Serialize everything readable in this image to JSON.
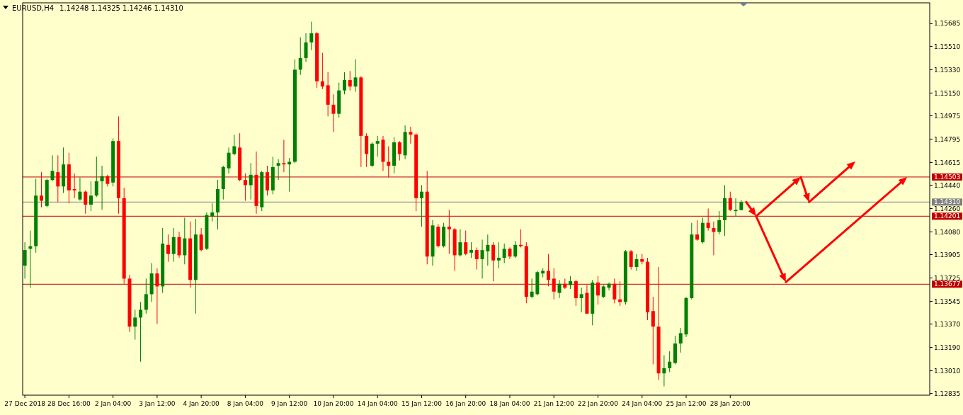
{
  "chart_data": {
    "type": "candlestick",
    "title": "EURUSD,H4",
    "subtitle": "1.14248 1.14325 1.14246 1.14310",
    "categories": [
      "27 Dec 2018",
      null,
      null,
      null,
      null,
      null,
      null,
      null,
      "28 Dec 16:00",
      null,
      null,
      null,
      null,
      null,
      null,
      null,
      "2 Jan 04:00",
      null,
      null,
      null,
      null,
      null,
      null,
      null,
      "3 Jan 12:00",
      null,
      null,
      null,
      null,
      null,
      null,
      null,
      "4 Jan 20:00",
      null,
      null,
      null,
      null,
      null,
      null,
      null,
      "8 Jan 04:00",
      null,
      null,
      null,
      null,
      null,
      null,
      null,
      "9 Jan 12:00",
      null,
      null,
      null,
      null,
      null,
      null,
      null,
      "10 Jan 20:00",
      null,
      null,
      null,
      null,
      null,
      null,
      null,
      "14 Jan 04:00",
      null,
      null,
      null,
      null,
      null,
      null,
      null,
      "15 Jan 12:00",
      null,
      null,
      null,
      null,
      null,
      null,
      null,
      "16 Jan 20:00",
      null,
      null,
      null,
      null,
      null,
      null,
      null,
      "18 Jan 04:00",
      null,
      null,
      null,
      null,
      null,
      null,
      null,
      "21 Jan 12:00",
      null,
      null,
      null,
      null,
      null,
      null,
      null,
      "22 Jan 20:00",
      null,
      null,
      null,
      null,
      null,
      null,
      null,
      "24 Jan 04:00",
      null,
      null,
      null,
      null,
      null,
      null,
      null,
      "25 Jan 12:00",
      null,
      null,
      null,
      null,
      null,
      null,
      null,
      "28 Jan 20:00",
      null,
      null,
      null,
      null,
      null,
      null,
      null,
      null,
      null,
      null,
      null,
      null,
      null,
      null,
      null,
      null,
      null,
      null,
      null,
      null,
      null,
      null,
      null,
      null,
      null,
      null,
      null,
      null,
      null,
      null,
      null,
      null,
      null,
      null,
      null,
      null
    ],
    "ohlc": [
      [
        1.1382,
        1.14,
        1.1372,
        1.1394
      ],
      [
        1.1395,
        1.1409,
        1.1365,
        1.1397
      ],
      [
        1.1397,
        1.1449,
        1.1392,
        1.1436
      ],
      [
        1.1436,
        1.1454,
        1.1427,
        1.1432
      ],
      [
        1.1428,
        1.1449,
        1.1427,
        1.1448
      ],
      [
        1.1448,
        1.1467,
        1.1447,
        1.1455
      ],
      [
        1.1454,
        1.1467,
        1.1431,
        1.1443
      ],
      [
        1.1443,
        1.1473,
        1.1438,
        1.146
      ],
      [
        1.146,
        1.1469,
        1.143,
        1.144
      ],
      [
        1.1441,
        1.1453,
        1.1434,
        1.144
      ],
      [
        1.1433,
        1.145,
        1.1432,
        1.1439
      ],
      [
        1.1439,
        1.144,
        1.1422,
        1.1429
      ],
      [
        1.1429,
        1.1447,
        1.1424,
        1.1436
      ],
      [
        1.1436,
        1.1466,
        1.1435,
        1.1447
      ],
      [
        1.1447,
        1.1459,
        1.1425,
        1.1451
      ],
      [
        1.1451,
        1.1452,
        1.1443,
        1.1445
      ],
      [
        1.1446,
        1.148,
        1.1443,
        1.1478
      ],
      [
        1.1478,
        1.1497,
        1.1422,
        1.1434
      ],
      [
        1.1434,
        1.1442,
        1.1368,
        1.1372
      ],
      [
        1.1372,
        1.1375,
        1.1331,
        1.1335
      ],
      [
        1.1335,
        1.1348,
        1.1325,
        1.1342
      ],
      [
        1.1342,
        1.1354,
        1.1308,
        1.1348
      ],
      [
        1.1348,
        1.1372,
        1.1345,
        1.136
      ],
      [
        1.136,
        1.1384,
        1.1354,
        1.1376
      ],
      [
        1.1376,
        1.138,
        1.1337,
        1.1366
      ],
      [
        1.1366,
        1.1411,
        1.1361,
        1.1399
      ],
      [
        1.1398,
        1.1406,
        1.1385,
        1.1391
      ],
      [
        1.1391,
        1.1411,
        1.1385,
        1.1404
      ],
      [
        1.1404,
        1.1408,
        1.1388,
        1.139
      ],
      [
        1.139,
        1.1419,
        1.1383,
        1.1403
      ],
      [
        1.1403,
        1.1416,
        1.1365,
        1.1371
      ],
      [
        1.1371,
        1.1418,
        1.1345,
        1.1406
      ],
      [
        1.1406,
        1.1411,
        1.1393,
        1.1394
      ],
      [
        1.1395,
        1.1423,
        1.1394,
        1.1421
      ],
      [
        1.142,
        1.143,
        1.1416,
        1.1423
      ],
      [
        1.1423,
        1.1448,
        1.141,
        1.1441
      ],
      [
        1.1441,
        1.1459,
        1.1433,
        1.1458
      ],
      [
        1.1457,
        1.1473,
        1.1453,
        1.1469
      ],
      [
        1.1468,
        1.1483,
        1.1467,
        1.1474
      ],
      [
        1.1473,
        1.1484,
        1.1447,
        1.1448
      ],
      [
        1.1448,
        1.1453,
        1.1432,
        1.1444
      ],
      [
        1.1444,
        1.1461,
        1.1433,
        1.1452
      ],
      [
        1.1452,
        1.147,
        1.1422,
        1.1428
      ],
      [
        1.1427,
        1.1455,
        1.1424,
        1.1454
      ],
      [
        1.1454,
        1.1459,
        1.1436,
        1.144
      ],
      [
        1.144,
        1.1466,
        1.1437,
        1.1458
      ],
      [
        1.1459,
        1.1464,
        1.1448,
        1.1461
      ],
      [
        1.1461,
        1.1479,
        1.1454,
        1.146
      ],
      [
        1.146,
        1.1465,
        1.1439,
        1.1462
      ],
      [
        1.1462,
        1.1541,
        1.1461,
        1.1533
      ],
      [
        1.1533,
        1.1558,
        1.1529,
        1.1542
      ],
      [
        1.1542,
        1.1561,
        1.1539,
        1.1554
      ],
      [
        1.1554,
        1.157,
        1.1548,
        1.1561
      ],
      [
        1.1561,
        1.1562,
        1.1519,
        1.1524
      ],
      [
        1.1524,
        1.1546,
        1.1518,
        1.152
      ],
      [
        1.1521,
        1.1531,
        1.1497,
        1.1506
      ],
      [
        1.1506,
        1.1514,
        1.1485,
        1.1499
      ],
      [
        1.1499,
        1.1523,
        1.1496,
        1.1517
      ],
      [
        1.1517,
        1.1531,
        1.1514,
        1.1525
      ],
      [
        1.1525,
        1.1532,
        1.1517,
        1.152
      ],
      [
        1.152,
        1.1541,
        1.1516,
        1.1527
      ],
      [
        1.1527,
        1.1528,
        1.1458,
        1.1482
      ],
      [
        1.1482,
        1.1484,
        1.1458,
        1.1468
      ],
      [
        1.1459,
        1.1477,
        1.1458,
        1.1476
      ],
      [
        1.1476,
        1.1482,
        1.1466,
        1.1478
      ],
      [
        1.1479,
        1.1482,
        1.1455,
        1.1462
      ],
      [
        1.1462,
        1.1474,
        1.145,
        1.1459
      ],
      [
        1.1459,
        1.1481,
        1.1453,
        1.1477
      ],
      [
        1.1477,
        1.1478,
        1.1463,
        1.1468
      ],
      [
        1.1467,
        1.149,
        1.1464,
        1.1485
      ],
      [
        1.1485,
        1.1489,
        1.1476,
        1.1483
      ],
      [
        1.1483,
        1.1484,
        1.1424,
        1.1434
      ],
      [
        1.1434,
        1.1444,
        1.1412,
        1.1439
      ],
      [
        1.1439,
        1.1455,
        1.1383,
        1.1389
      ],
      [
        1.1389,
        1.1417,
        1.1382,
        1.1413
      ],
      [
        1.1412,
        1.1414,
        1.1396,
        1.1397
      ],
      [
        1.1397,
        1.1415,
        1.1396,
        1.1412
      ],
      [
        1.1412,
        1.1425,
        1.1391,
        1.141
      ],
      [
        1.141,
        1.1411,
        1.1378,
        1.139
      ],
      [
        1.139,
        1.141,
        1.1389,
        1.14
      ],
      [
        1.14,
        1.1409,
        1.139,
        1.1391
      ],
      [
        1.1392,
        1.14,
        1.1388,
        1.1394
      ],
      [
        1.1394,
        1.1396,
        1.1379,
        1.1387
      ],
      [
        1.1387,
        1.1402,
        1.1372,
        1.1394
      ],
      [
        1.1393,
        1.1406,
        1.1382,
        1.1398
      ],
      [
        1.1398,
        1.14,
        1.137,
        1.1386
      ],
      [
        1.1386,
        1.14,
        1.138,
        1.1388
      ],
      [
        1.1388,
        1.1399,
        1.1384,
        1.1395
      ],
      [
        1.1395,
        1.1396,
        1.1387,
        1.1389
      ],
      [
        1.1389,
        1.1401,
        1.1388,
        1.1398
      ],
      [
        1.1398,
        1.141,
        1.1396,
        1.1397
      ],
      [
        1.1397,
        1.14,
        1.1353,
        1.1358
      ],
      [
        1.1358,
        1.1372,
        1.1357,
        1.1362
      ],
      [
        1.136,
        1.1378,
        1.1359,
        1.1377
      ],
      [
        1.1376,
        1.138,
        1.1373,
        1.1378
      ],
      [
        1.1378,
        1.1391,
        1.1366,
        1.1371
      ],
      [
        1.1372,
        1.138,
        1.1356,
        1.1362
      ],
      [
        1.1361,
        1.1371,
        1.1357,
        1.1368
      ],
      [
        1.1368,
        1.1372,
        1.1364,
        1.1365
      ],
      [
        1.1367,
        1.1374,
        1.1364,
        1.137
      ],
      [
        1.137,
        1.1371,
        1.1351,
        1.1357
      ],
      [
        1.1357,
        1.1365,
        1.1346,
        1.136
      ],
      [
        1.1361,
        1.1367,
        1.1345,
        1.1345
      ],
      [
        1.1345,
        1.1371,
        1.1336,
        1.1369
      ],
      [
        1.1369,
        1.1374,
        1.1352,
        1.1359
      ],
      [
        1.1358,
        1.1367,
        1.1357,
        1.1366
      ],
      [
        1.1365,
        1.1369,
        1.1363,
        1.1368
      ],
      [
        1.1368,
        1.1372,
        1.1353,
        1.1356
      ],
      [
        1.1356,
        1.137,
        1.1351,
        1.1354
      ],
      [
        1.1354,
        1.1394,
        1.1352,
        1.1393
      ],
      [
        1.1393,
        1.1394,
        1.1379,
        1.1381
      ],
      [
        1.1381,
        1.1391,
        1.1378,
        1.1387
      ],
      [
        1.1387,
        1.1391,
        1.1383,
        1.1385
      ],
      [
        1.1385,
        1.1388,
        1.134,
        1.1346
      ],
      [
        1.1347,
        1.1358,
        1.1306,
        1.1335
      ],
      [
        1.1335,
        1.1381,
        1.1294,
        1.1299
      ],
      [
        1.1299,
        1.1313,
        1.1289,
        1.1303
      ],
      [
        1.1303,
        1.1316,
        1.13,
        1.1308
      ],
      [
        1.1307,
        1.1328,
        1.1306,
        1.1322
      ],
      [
        1.1322,
        1.1334,
        1.1315,
        1.133
      ],
      [
        1.1329,
        1.1358,
        1.1327,
        1.1357
      ],
      [
        1.1357,
        1.1415,
        1.1356,
        1.1406
      ],
      [
        1.1406,
        1.1417,
        1.1401,
        1.1402
      ],
      [
        1.14,
        1.1419,
        1.1399,
        1.1415
      ],
      [
        1.1415,
        1.1426,
        1.1409,
        1.1411
      ],
      [
        1.1411,
        1.1416,
        1.139,
        1.1408
      ],
      [
        1.1408,
        1.1424,
        1.1406,
        1.1417
      ],
      [
        1.1417,
        1.1444,
        1.1405,
        1.1434
      ],
      [
        1.1434,
        1.1439,
        1.1424,
        1.1425
      ],
      [
        1.1424,
        1.1434,
        1.142,
        1.1425
      ],
      [
        1.14248,
        1.14325,
        1.14246,
        1.1431
      ],
      null,
      null,
      null,
      null,
      null,
      null,
      null,
      null,
      null,
      null,
      null,
      null,
      null,
      null,
      null,
      null,
      null,
      null,
      null,
      null,
      null,
      null,
      null,
      null,
      null,
      null,
      null,
      null,
      null,
      null,
      null,
      null,
      null,
      null
    ],
    "ylim": [
      1.12822,
      1.15845
    ],
    "yticks": [
      {
        "value": 1.15685,
        "label": "1.15685"
      },
      {
        "value": 1.1551,
        "label": "1.15510"
      },
      {
        "value": 1.1533,
        "label": "1.15330"
      },
      {
        "value": 1.1515,
        "label": "1.15150"
      },
      {
        "value": 1.14975,
        "label": "1.14975"
      },
      {
        "value": 1.14795,
        "label": "1.14795"
      },
      {
        "value": 1.14615,
        "label": "1.14615"
      },
      {
        "value": 1.1444,
        "label": "1.14440"
      },
      {
        "value": 1.1426,
        "label": "1.14260"
      },
      {
        "value": 1.1408,
        "label": "1.14080"
      },
      {
        "value": 1.13905,
        "label": "1.13905"
      },
      {
        "value": 1.13725,
        "label": "1.13725"
      },
      {
        "value": 1.13545,
        "label": "1.13545"
      },
      {
        "value": 1.1337,
        "label": "1.13370"
      },
      {
        "value": 1.1319,
        "label": "1.13190"
      },
      {
        "value": 1.1301,
        "label": "1.13010"
      },
      {
        "value": 1.12835,
        "label": "1.12835"
      }
    ],
    "ref_lines": [
      {
        "axis": "y",
        "value": 1.14503,
        "label": "1.14503",
        "color": "#c00000"
      },
      {
        "axis": "y",
        "value": 1.1431,
        "label": "1.14310",
        "color": "#808080"
      },
      {
        "axis": "y",
        "value": 1.14201,
        "label": "1.14201",
        "color": "#c00000"
      },
      {
        "axis": "y",
        "value": 1.13677,
        "label": "1.13677",
        "color": "#c00000"
      }
    ]
  }
}
